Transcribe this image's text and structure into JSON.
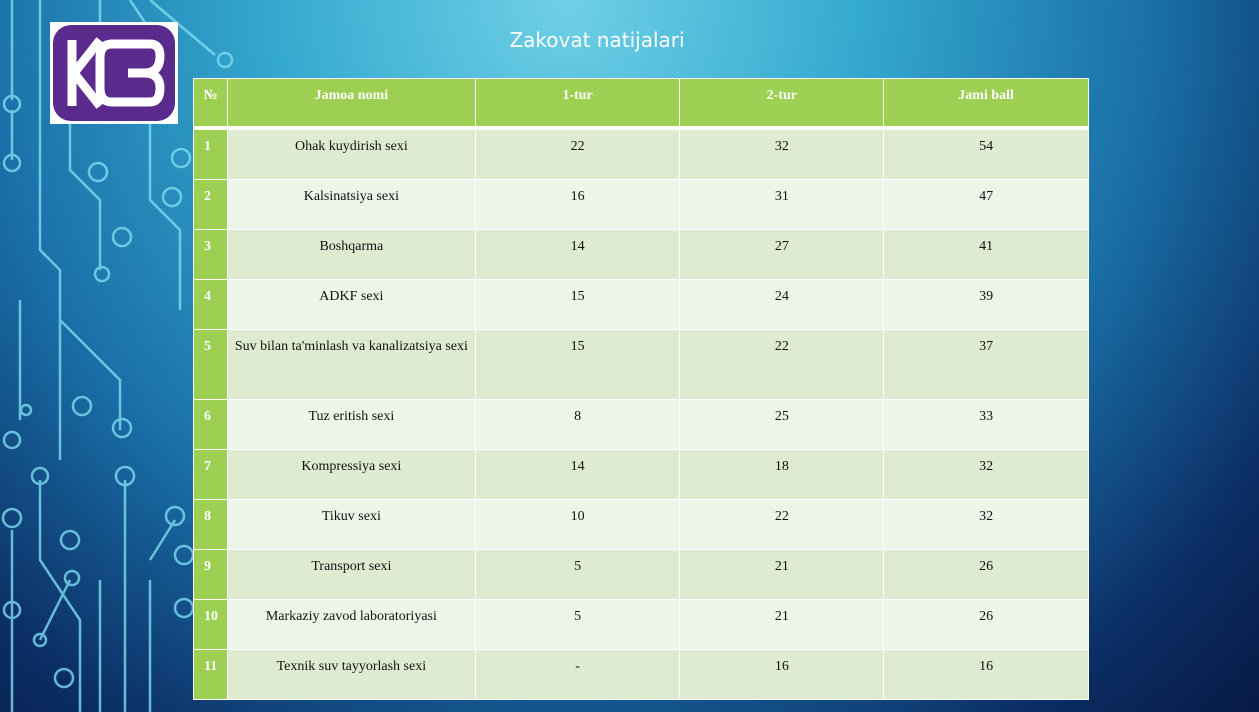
{
  "title": "Zakovat natijalari",
  "table": {
    "header": [
      "№",
      "Jamoa nomi",
      "1-tur",
      "2-tur",
      "Jami ball"
    ],
    "rows": [
      [
        1,
        "Ohak kuydirish sexi",
        22,
        32,
        54
      ],
      [
        2,
        "Kalsinatsiya sexi",
        16,
        31,
        47
      ],
      [
        3,
        "Boshqarma",
        14,
        27,
        41
      ],
      [
        4,
        "ADKF sexi",
        15,
        24,
        39
      ],
      [
        5,
        "Suv bilan ta'minlash va kanalizatsiya sexi",
        15,
        22,
        37
      ],
      [
        6,
        "Tuz eritish sexi",
        8,
        25,
        33
      ],
      [
        7,
        "Kompressiya sexi",
        14,
        18,
        32
      ],
      [
        8,
        "Tikuv sexi",
        10,
        22,
        32
      ],
      [
        9,
        "Transport sexi",
        5,
        21,
        26
      ],
      [
        10,
        "Markaziy zavod laboratoriyasi",
        5,
        21,
        26
      ],
      [
        11,
        "Texnik suv tayyorlash sexi",
        "-",
        16,
        16
      ]
    ]
  }
}
